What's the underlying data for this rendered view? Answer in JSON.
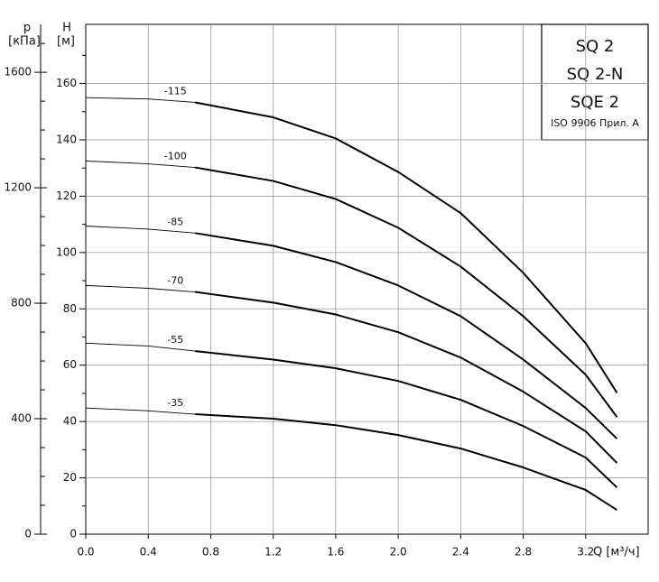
{
  "chart_data": {
    "type": "line",
    "title_lines": [
      "SQ 2",
      "SQ 2-N",
      "SQE 2"
    ],
    "subtitle": "ISO 9906 Прил. A",
    "y_label": "H",
    "y_unit": "[м]",
    "y2_label": "p",
    "y2_unit": "[кПа]",
    "x_label": "Q [м³/ч]",
    "x": [
      0,
      0.4,
      0.7,
      1.2,
      1.6,
      2.0,
      2.4,
      2.8,
      3.2,
      3.4
    ],
    "series": [
      {
        "name": "-115",
        "color": "#000000",
        "values": [
          155,
          154.5,
          153.3,
          148,
          140.5,
          128.6,
          114,
          92.8,
          67.8,
          50.2
        ]
      },
      {
        "name": "-100",
        "color": "#000000",
        "values": [
          132.5,
          131.5,
          130.2,
          125.4,
          119,
          108.8,
          95,
          77.4,
          56.6,
          41.6
        ]
      },
      {
        "name": "-85",
        "color": "#000000",
        "values": [
          109.4,
          108.3,
          106.9,
          102.4,
          96.6,
          88.3,
          77.4,
          62,
          44.8,
          33.9
        ]
      },
      {
        "name": "-70",
        "color": "#000000",
        "values": [
          88.3,
          87.3,
          86,
          82.2,
          78,
          71.7,
          62.7,
          50.6,
          36.5,
          25.3
        ]
      },
      {
        "name": "-55",
        "color": "#000000",
        "values": [
          67.8,
          66.8,
          65,
          62,
          58.9,
          54.4,
          47.7,
          38.4,
          27.2,
          16.6
        ]
      },
      {
        "name": "-35",
        "color": "#000000",
        "values": [
          44.8,
          43.8,
          42.6,
          41,
          38.7,
          35.2,
          30.4,
          23.7,
          15.7,
          8.6
        ]
      }
    ],
    "xlim": [
      0,
      3.6
    ],
    "xticks": [
      {
        "value": 0,
        "label": "0.0"
      },
      0.4,
      0.8,
      1.2,
      1.6,
      {
        "value": 2,
        "label": "2.0"
      },
      2.4,
      2.8,
      3.2
    ],
    "ylim": [
      0,
      181
    ],
    "yticks": [
      0,
      20,
      40,
      60,
      80,
      100,
      120,
      140,
      160
    ],
    "yminorticks": [
      10,
      30,
      50,
      70,
      90,
      110,
      130,
      150,
      170
    ],
    "y2lim": [
      0,
      1766
    ],
    "y2ticks": [
      0,
      400,
      800,
      1200,
      1600
    ],
    "y2minorticks": [
      100,
      200,
      300,
      500,
      600,
      700,
      900,
      1000,
      1100,
      1300,
      1400,
      1500,
      1700
    ],
    "grid": true
  }
}
